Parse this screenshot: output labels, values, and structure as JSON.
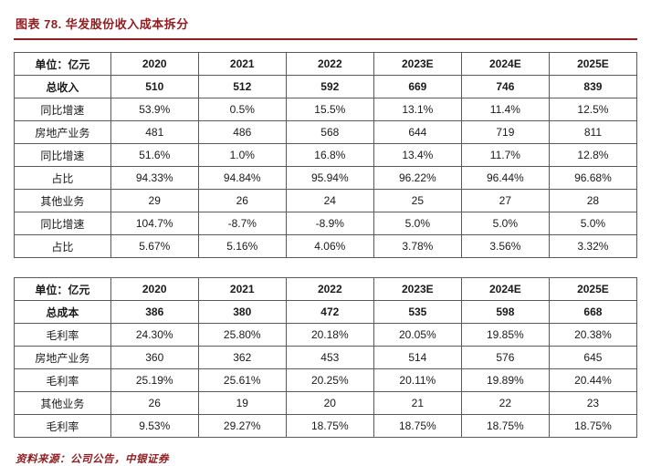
{
  "page": {
    "title": "图表 78. 华发股份收入成本拆分",
    "source_note": "资料来源：公司公告，中银证券",
    "accent_color": "#8e1f22",
    "highlight_blue": "#c8d7e9",
    "highlight_pink": "#f3dbda"
  },
  "revenue_table": {
    "unit_label": "单位：亿元",
    "years": [
      "2020",
      "2021",
      "2022",
      "2023E",
      "2024E",
      "2025E"
    ],
    "rows": [
      {
        "label": "总收入",
        "values": [
          "510",
          "512",
          "592",
          "669",
          "746",
          "839"
        ],
        "bold": true
      },
      {
        "label": "同比增速",
        "values": [
          "53.9%",
          "0.5%",
          "15.5%",
          "13.1%",
          "11.4%",
          "12.5%"
        ]
      },
      {
        "label": "房地产业务",
        "values": [
          "481",
          "486",
          "568",
          "644",
          "719",
          "811"
        ],
        "highlight": "blue",
        "highlight_cols": [
          3,
          4,
          5
        ]
      },
      {
        "label": "同比增速",
        "values": [
          "51.6%",
          "1.0%",
          "16.8%",
          "13.4%",
          "11.7%",
          "12.8%"
        ]
      },
      {
        "label": "占比",
        "values": [
          "94.33%",
          "94.84%",
          "95.94%",
          "96.22%",
          "96.44%",
          "96.68%"
        ]
      },
      {
        "label": "其他业务",
        "values": [
          "29",
          "26",
          "24",
          "25",
          "27",
          "28"
        ]
      },
      {
        "label": "同比增速",
        "values": [
          "104.7%",
          "-8.7%",
          "-8.9%",
          "5.0%",
          "5.0%",
          "5.0%"
        ],
        "highlight": "pink",
        "highlight_cols": [
          3,
          4,
          5
        ]
      },
      {
        "label": "占比",
        "values": [
          "5.67%",
          "5.16%",
          "4.06%",
          "3.78%",
          "3.56%",
          "3.32%"
        ]
      }
    ]
  },
  "cost_table": {
    "unit_label": "单位：亿元",
    "years": [
      "2020",
      "2021",
      "2022",
      "2023E",
      "2024E",
      "2025E"
    ],
    "rows": [
      {
        "label": "总成本",
        "values": [
          "386",
          "380",
          "472",
          "535",
          "598",
          "668"
        ],
        "bold": true
      },
      {
        "label": "毛利率",
        "values": [
          "24.30%",
          "25.80%",
          "20.18%",
          "20.05%",
          "19.85%",
          "20.38%"
        ]
      },
      {
        "label": "房地产业务",
        "values": [
          "360",
          "362",
          "453",
          "514",
          "576",
          "645"
        ],
        "highlight": "blue",
        "highlight_cols": [
          3,
          4,
          5
        ]
      },
      {
        "label": "毛利率",
        "values": [
          "25.19%",
          "25.61%",
          "20.25%",
          "20.11%",
          "19.89%",
          "20.44%"
        ]
      },
      {
        "label": "其他业务",
        "values": [
          "26",
          "19",
          "20",
          "21",
          "22",
          "23"
        ]
      },
      {
        "label": "毛利率",
        "values": [
          "9.53%",
          "29.27%",
          "18.75%",
          "18.75%",
          "18.75%",
          "18.75%"
        ],
        "highlight": "pink",
        "highlight_cols": [
          3,
          4,
          5
        ]
      }
    ]
  }
}
